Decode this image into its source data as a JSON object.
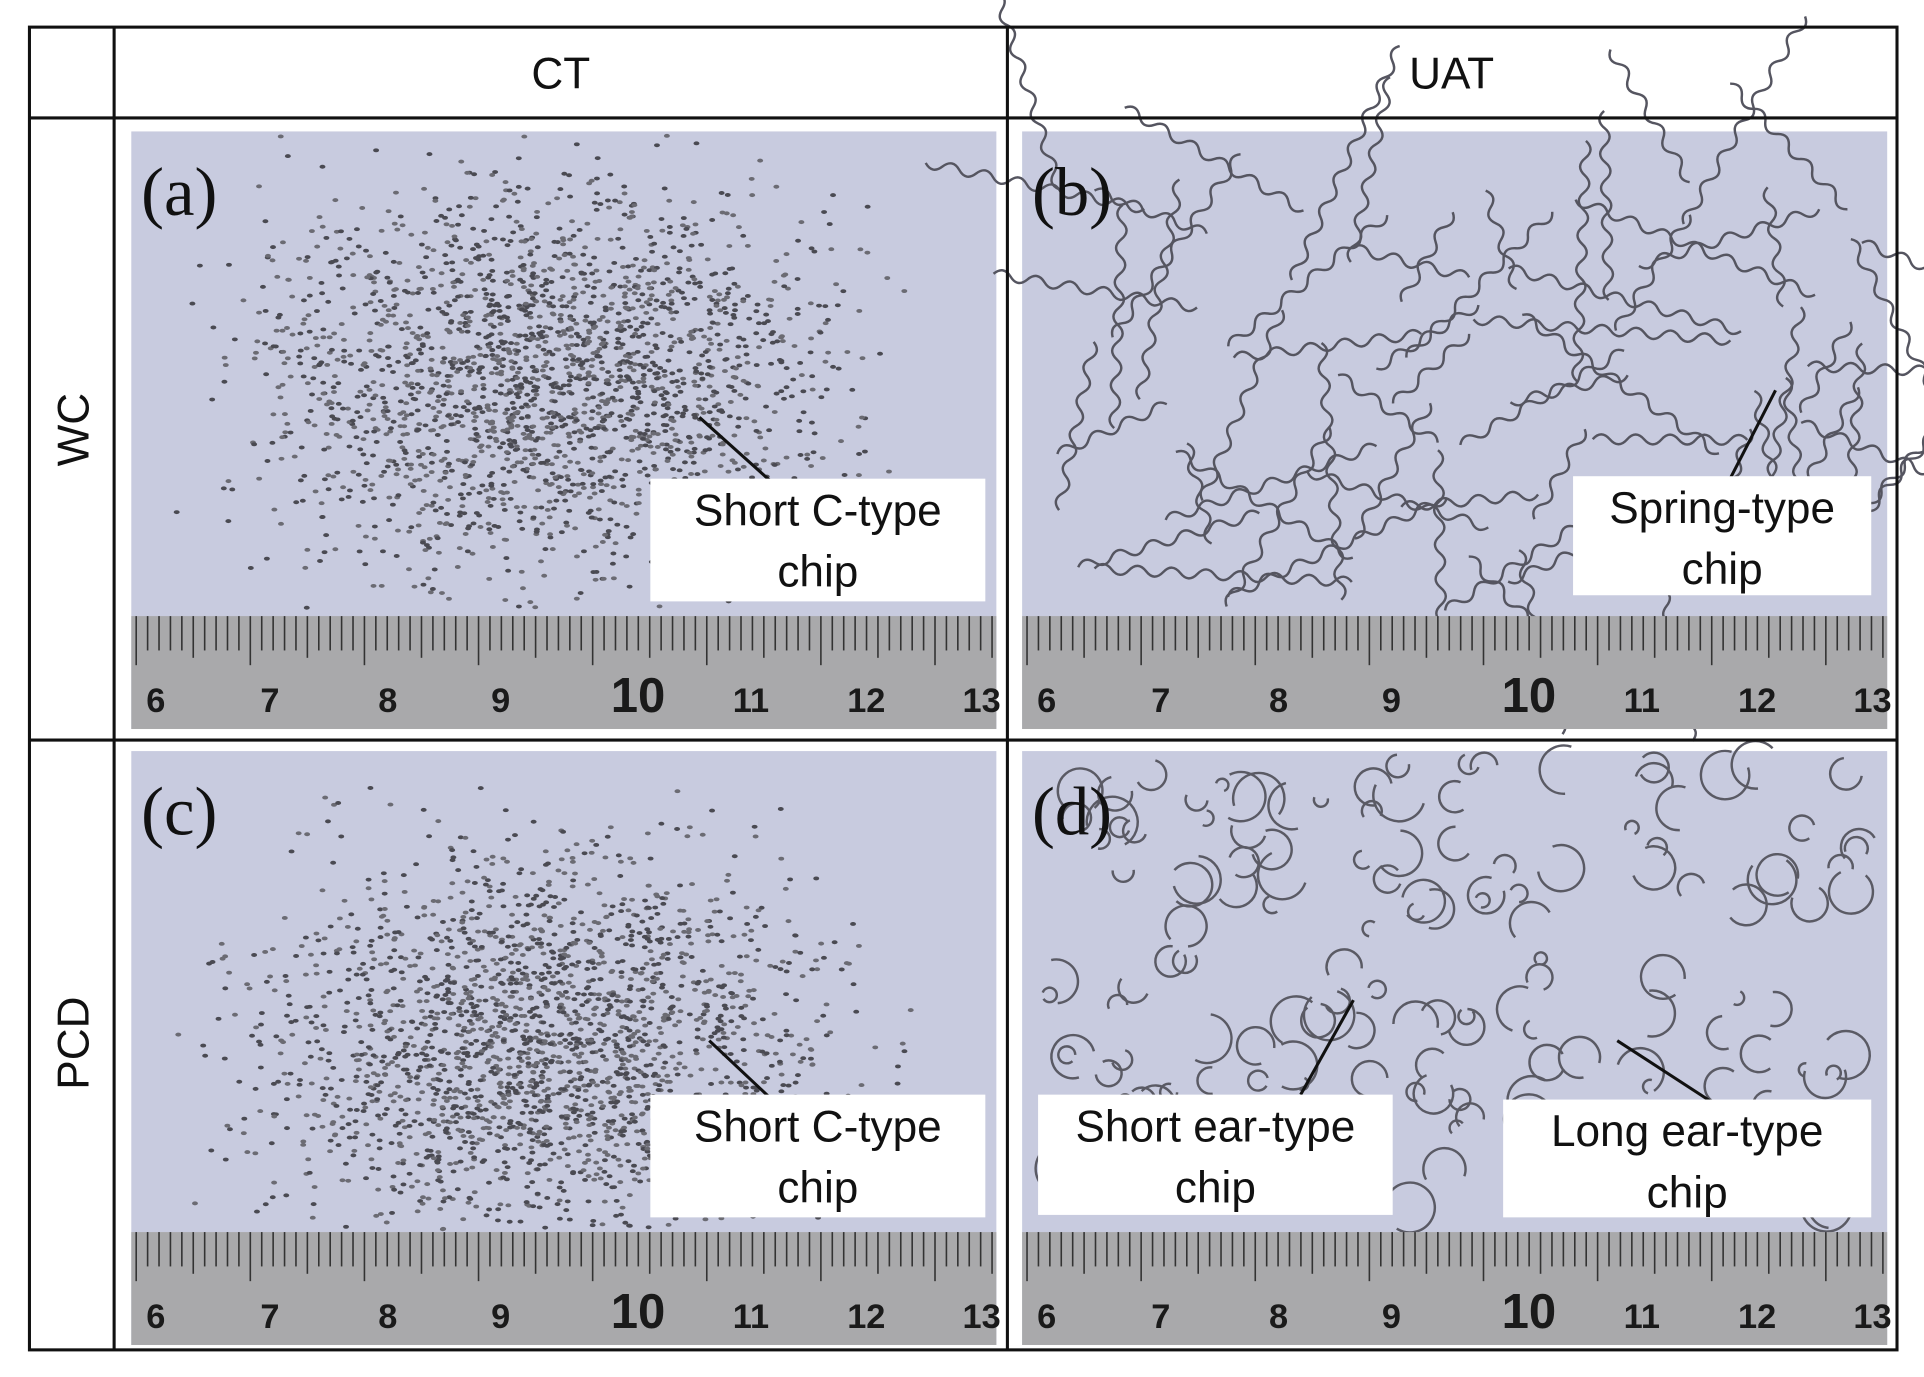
{
  "header": {
    "columns": [
      "CT",
      "UAT"
    ]
  },
  "rows": [
    {
      "label": "WC",
      "panels": [
        {
          "label": "(a)",
          "callouts": [
            {
              "lines": [
                "Short C-type",
                "chip"
              ]
            }
          ]
        },
        {
          "label": "(b)",
          "callouts": [
            {
              "lines": [
                "Spring-type",
                "chip"
              ]
            }
          ]
        }
      ]
    },
    {
      "label": "PCD",
      "panels": [
        {
          "label": "(c)",
          "callouts": [
            {
              "lines": [
                "Short C-type",
                "chip"
              ]
            }
          ]
        },
        {
          "label": "(d)",
          "callouts": [
            {
              "lines": [
                "Short ear-type",
                "chip"
              ]
            },
            {
              "lines": [
                "Long ear-type",
                "chip"
              ]
            }
          ]
        }
      ]
    }
  ],
  "ruler_labels": [
    "6",
    "7",
    "8",
    "9",
    "10",
    "11",
    "12",
    "13"
  ]
}
